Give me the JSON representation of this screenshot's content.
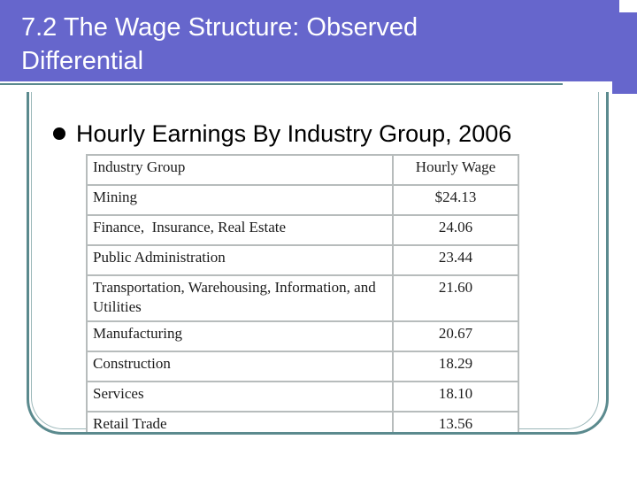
{
  "slide": {
    "title": "7.2 The Wage Structure: Observed Differential",
    "bullet": "Hourly Earnings By Industry Group, 2006"
  },
  "table": {
    "headers": [
      "Industry Group",
      "Hourly Wage"
    ],
    "rows": [
      {
        "group": "Mining",
        "wage": "$24.13"
      },
      {
        "group": "Finance,  Insurance, Real Estate",
        "wage": "24.06"
      },
      {
        "group": "Public Administration",
        "wage": "23.44"
      },
      {
        "group": "Transportation, Warehousing, Information, and Utilities",
        "wage": "21.60"
      },
      {
        "group": "Manufacturing",
        "wage": "20.67"
      },
      {
        "group": "Construction",
        "wage": "18.29"
      },
      {
        "group": "Services",
        "wage": "18.10"
      },
      {
        "group": "Retail Trade",
        "wage": "13.56"
      }
    ]
  },
  "colors": {
    "title_bar": "#6666cc",
    "frame": "#5b8a8e",
    "table_grid": "#b7bcbc"
  }
}
